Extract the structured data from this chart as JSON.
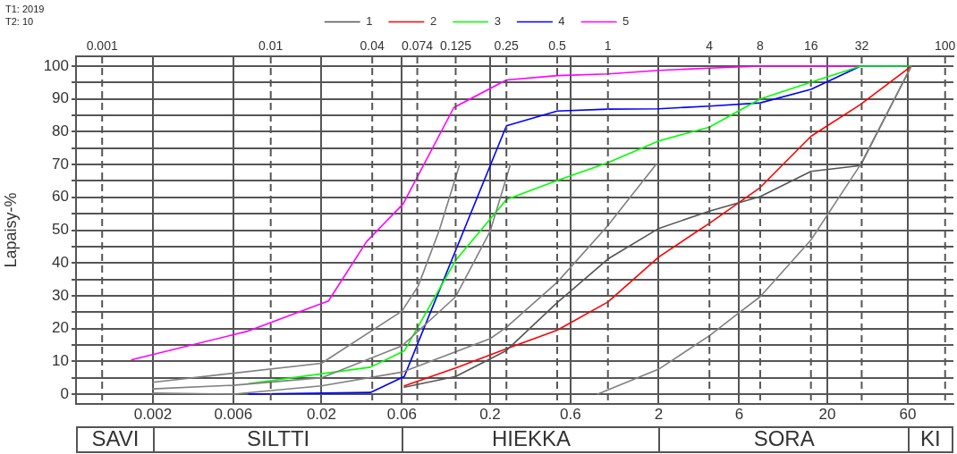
{
  "chart_data": {
    "type": "line",
    "ylabel": "Lapaisy-%",
    "annotations": [
      "T1: 2019",
      "T2: 10",
      "SAVI",
      "SILTTI",
      "HIEKKA",
      "SORA",
      "KI"
    ],
    "xlim": [
      0.0007,
      112
    ],
    "log": "x",
    "xticks": [
      0.002,
      0.006,
      0.02,
      0.06,
      0.2,
      0.6,
      2,
      6,
      20,
      60
    ],
    "ref_lines": [
      {
        "axis": "x",
        "value": 0.001,
        "label": "0.001",
        "line_style": "dashed"
      },
      {
        "axis": "x",
        "value": 0.01,
        "label": "0.01",
        "line_style": "dashed"
      },
      {
        "axis": "x",
        "value": 0.04,
        "label": "0.04",
        "line_style": "dashed"
      },
      {
        "axis": "x",
        "value": 0.074,
        "label": "0.074",
        "line_style": "dashed"
      },
      {
        "axis": "x",
        "value": 0.125,
        "label": "0.125",
        "line_style": "dashed"
      },
      {
        "axis": "x",
        "value": 0.25,
        "label": "0.25",
        "line_style": "dashed"
      },
      {
        "axis": "x",
        "value": 0.5,
        "label": "0.5",
        "line_style": "dashed"
      },
      {
        "axis": "x",
        "value": 1,
        "label": "1",
        "line_style": "dashed"
      },
      {
        "axis": "x",
        "value": 4,
        "label": "4",
        "line_style": "dashed"
      },
      {
        "axis": "x",
        "value": 8,
        "label": "8",
        "line_style": "dashed"
      },
      {
        "axis": "x",
        "value": 16,
        "label": "16",
        "line_style": "dashed"
      },
      {
        "axis": "x",
        "value": 32,
        "label": "32",
        "line_style": "dashed"
      },
      {
        "axis": "x",
        "value": 100,
        "label": "100",
        "line_style": "dashed"
      }
    ],
    "ylim": [
      -3,
      103
    ],
    "yticks": [
      0,
      {
        "value": 5,
        "label": null
      },
      10,
      {
        "value": 15,
        "label": null
      },
      20,
      {
        "value": 25,
        "label": null
      },
      30,
      {
        "value": 35,
        "label": null
      },
      40,
      {
        "value": 45,
        "label": null
      },
      50,
      {
        "value": 55,
        "label": null
      },
      60,
      {
        "value": 65,
        "label": null
      },
      70,
      {
        "value": 75,
        "label": null
      },
      80,
      {
        "value": 85,
        "label": null
      },
      90,
      {
        "value": 95,
        "label": null
      },
      100
    ],
    "grid": true,
    "legend": "top",
    "marker": "none",
    "line_style": "solid",
    "series": [
      {
        "color": "#808080",
        "x": [
          0.002,
          0.02,
          0.06,
          0.075,
          0.1,
          0.132
        ],
        "values": [
          3.6,
          9.4,
          25.3,
          33,
          50,
          70
        ]
      },
      {
        "color": "#808080",
        "x": [
          0.002,
          0.006,
          0.02,
          0.06,
          0.125,
          0.2,
          0.264
        ],
        "values": [
          1.6,
          2.7,
          5.0,
          14.7,
          29.7,
          49.6,
          70
        ]
      },
      {
        "color": "#808080",
        "x": [
          0.002,
          0.006,
          0.02,
          0.06,
          0.2,
          0.25,
          0.5,
          1,
          1.93
        ],
        "values": [
          0.3,
          0,
          2.5,
          6.7,
          16.9,
          20.4,
          34.1,
          51.4,
          70
        ]
      },
      {
        "color": "#808080",
        "x": [
          0.87,
          2,
          4,
          6,
          8,
          16,
          31.5,
          63
        ],
        "values": [
          0,
          7.6,
          17.8,
          24.8,
          29.7,
          47,
          70,
          100
        ]
      },
      {
        "name": "1",
        "color": "#555555",
        "x": [
          0.062,
          0.125,
          0.25,
          0.5,
          1,
          2,
          4,
          8,
          16,
          31.5,
          63
        ],
        "values": [
          2.1,
          5.4,
          13.3,
          27.9,
          41.2,
          50.5,
          55.8,
          60.2,
          67.9,
          69.7,
          100
        ]
      },
      {
        "name": "2",
        "color": "#ff0000",
        "x": [
          0.062,
          0.125,
          0.25,
          0.5,
          1,
          2,
          4,
          8,
          16,
          31.5,
          63
        ],
        "values": [
          2.5,
          8.0,
          13.8,
          19.5,
          28.1,
          41.8,
          52.1,
          63.0,
          78.6,
          88.3,
          100
        ]
      },
      {
        "name": "3",
        "color": "#00ff00",
        "x": [
          0.0074,
          0.039,
          0.062,
          0.125,
          0.25,
          0.5,
          1,
          2,
          4,
          8,
          16,
          31.5,
          63
        ],
        "values": [
          3.2,
          8.2,
          13.2,
          40.8,
          59.3,
          65.1,
          70.6,
          77.2,
          81.4,
          90.0,
          95.1,
          100,
          100
        ]
      },
      {
        "name": "4",
        "color": "#0000ff",
        "x": [
          0.0074,
          0.039,
          0.062,
          0.25,
          0.5,
          1,
          2,
          4,
          8,
          16,
          31.5,
          63
        ],
        "values": [
          0,
          0.5,
          5.4,
          81.8,
          86.3,
          86.9,
          87.0,
          87.8,
          88.8,
          92.9,
          100,
          100
        ]
      },
      {
        "name": "5",
        "color": "#ff00ff",
        "x": [
          0.0015,
          0.0072,
          0.022,
          0.037,
          0.061,
          0.122,
          0.25,
          0.5,
          1,
          2,
          4,
          8,
          63
        ],
        "values": [
          10.5,
          19.1,
          28.4,
          46.5,
          58.0,
          87.4,
          95.8,
          97.1,
          97.6,
          98.7,
          99.4,
          100,
          100
        ]
      }
    ]
  }
}
